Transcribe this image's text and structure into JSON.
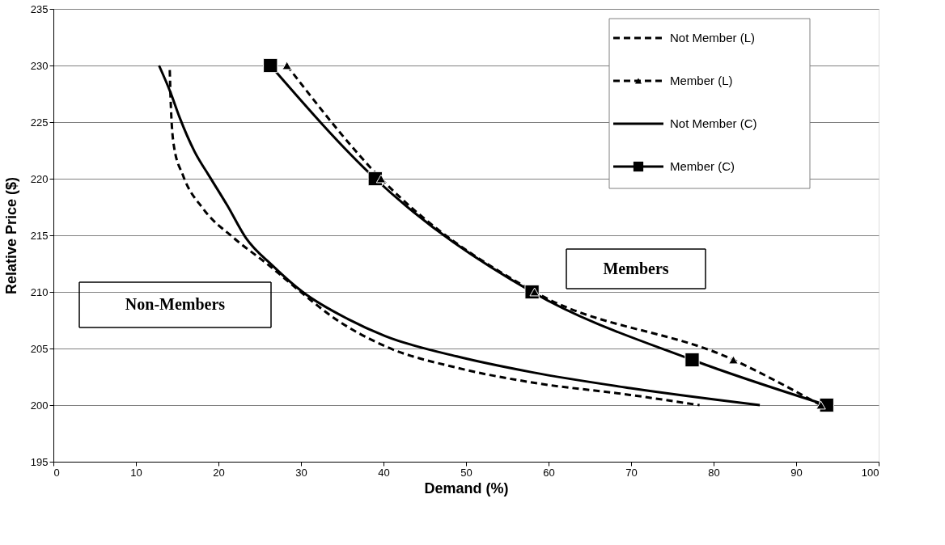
{
  "chart_data": {
    "type": "line",
    "xlabel": "Demand (%)",
    "ylabel": "Relative Price ($)",
    "xlim": [
      0,
      100
    ],
    "xticks": [
      0,
      10,
      20,
      30,
      40,
      50,
      60,
      70,
      80,
      90,
      100
    ],
    "ylim": [
      195,
      235
    ],
    "yticks": [
      195,
      200,
      205,
      210,
      215,
      220,
      225,
      230,
      235
    ],
    "grid": "y",
    "legend": "top right",
    "annotations": [
      "Non-Members",
      "Members"
    ],
    "series": [
      {
        "name": "Not Member (L)",
        "color": "#000000",
        "line_style": "dashed",
        "marker": "none",
        "x": [
          14.1,
          14.2,
          14.6,
          15.7,
          18.2,
          21.8,
          26.2,
          29.8,
          33.8,
          40.2,
          48.9,
          58.0,
          69.9,
          78.3
        ],
        "values": [
          229.6,
          227.1,
          222.9,
          220.3,
          217.3,
          214.8,
          212.3,
          210.1,
          207.8,
          205.2,
          203.3,
          202.0,
          200.9,
          200.0
        ]
      },
      {
        "name": "Member (L)",
        "color": "#000000",
        "line_style": "dashed",
        "marker": "triangle",
        "x": [
          28.3,
          39.7,
          58.3,
          82.4,
          93.0
        ],
        "values": [
          230,
          220,
          210,
          204,
          200
        ]
      },
      {
        "name": "Not Member (C)",
        "color": "#000000",
        "line_style": "solid",
        "marker": "none",
        "x": [
          12.8,
          14.2,
          15.3,
          17.1,
          19.0,
          21.1,
          23.3,
          26.6,
          30.2,
          35.7,
          40.2,
          48.9,
          58.0,
          69.9,
          85.6
        ],
        "values": [
          230.0,
          227.6,
          225.4,
          222.4,
          220.1,
          217.6,
          214.8,
          212.3,
          210.0,
          207.6,
          206.1,
          204.3,
          202.9,
          201.5,
          200.0
        ]
      },
      {
        "name": "Member (C)",
        "color": "#000000",
        "line_style": "solid",
        "marker": "square",
        "x": [
          26.3,
          39.0,
          58.0,
          77.4,
          93.7
        ],
        "values": [
          230,
          220,
          210,
          204,
          200
        ]
      }
    ]
  }
}
